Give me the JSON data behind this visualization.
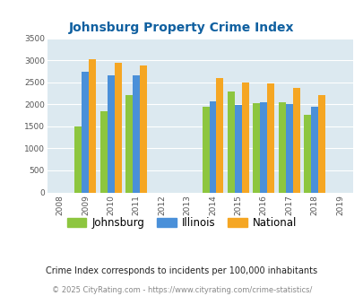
{
  "title": "Johnsburg Property Crime Index",
  "data_years": [
    2009,
    2010,
    2011,
    2014,
    2015,
    2016,
    2017,
    2018
  ],
  "johnsburg": [
    1500,
    1850,
    2220,
    1950,
    2300,
    2020,
    2050,
    1770
  ],
  "illinois": [
    2750,
    2670,
    2670,
    2070,
    1990,
    2050,
    2010,
    1940
  ],
  "national": [
    3030,
    2950,
    2890,
    2600,
    2500,
    2480,
    2380,
    2210
  ],
  "color_johnsburg": "#8dc63f",
  "color_illinois": "#4a90d9",
  "color_national": "#f5a623",
  "bar_width": 0.28,
  "ylim": [
    0,
    3500
  ],
  "yticks": [
    0,
    500,
    1000,
    1500,
    2000,
    2500,
    3000,
    3500
  ],
  "xticks": [
    2008,
    2009,
    2010,
    2011,
    2012,
    2013,
    2014,
    2015,
    2016,
    2017,
    2018,
    2019
  ],
  "title_color": "#1060a0",
  "subtitle": "Crime Index corresponds to incidents per 100,000 inhabitants",
  "footer": "© 2025 CityRating.com - https://www.cityrating.com/crime-statistics/",
  "bg_color": "#dce9f0",
  "grid_color": "#ffffff"
}
